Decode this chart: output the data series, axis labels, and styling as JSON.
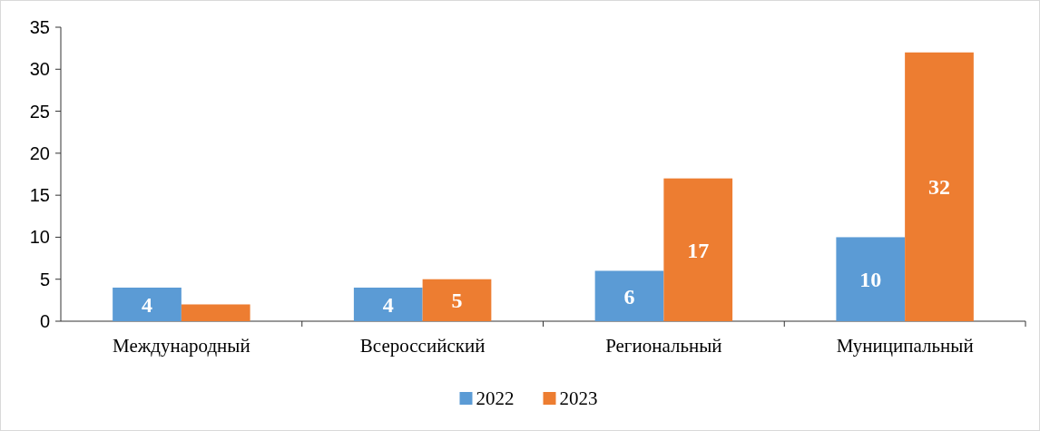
{
  "chart_data": {
    "type": "bar",
    "categories": [
      "Международный",
      "Всероссийский",
      "Региональный",
      "Муниципальный"
    ],
    "series": [
      {
        "name": "2022",
        "color": "#5b9bd5",
        "values": [
          4,
          4,
          6,
          10
        ],
        "value_labels": [
          "4",
          "4",
          "6",
          "10"
        ]
      },
      {
        "name": "2023",
        "color": "#ed7d31",
        "values": [
          2,
          5,
          17,
          32
        ],
        "value_labels": [
          null,
          "5",
          "17",
          "32"
        ]
      }
    ],
    "ylim": [
      0,
      35
    ],
    "yticks": [
      0,
      5,
      10,
      15,
      20,
      25,
      30,
      35
    ],
    "grid": false,
    "legend": "bottom"
  }
}
